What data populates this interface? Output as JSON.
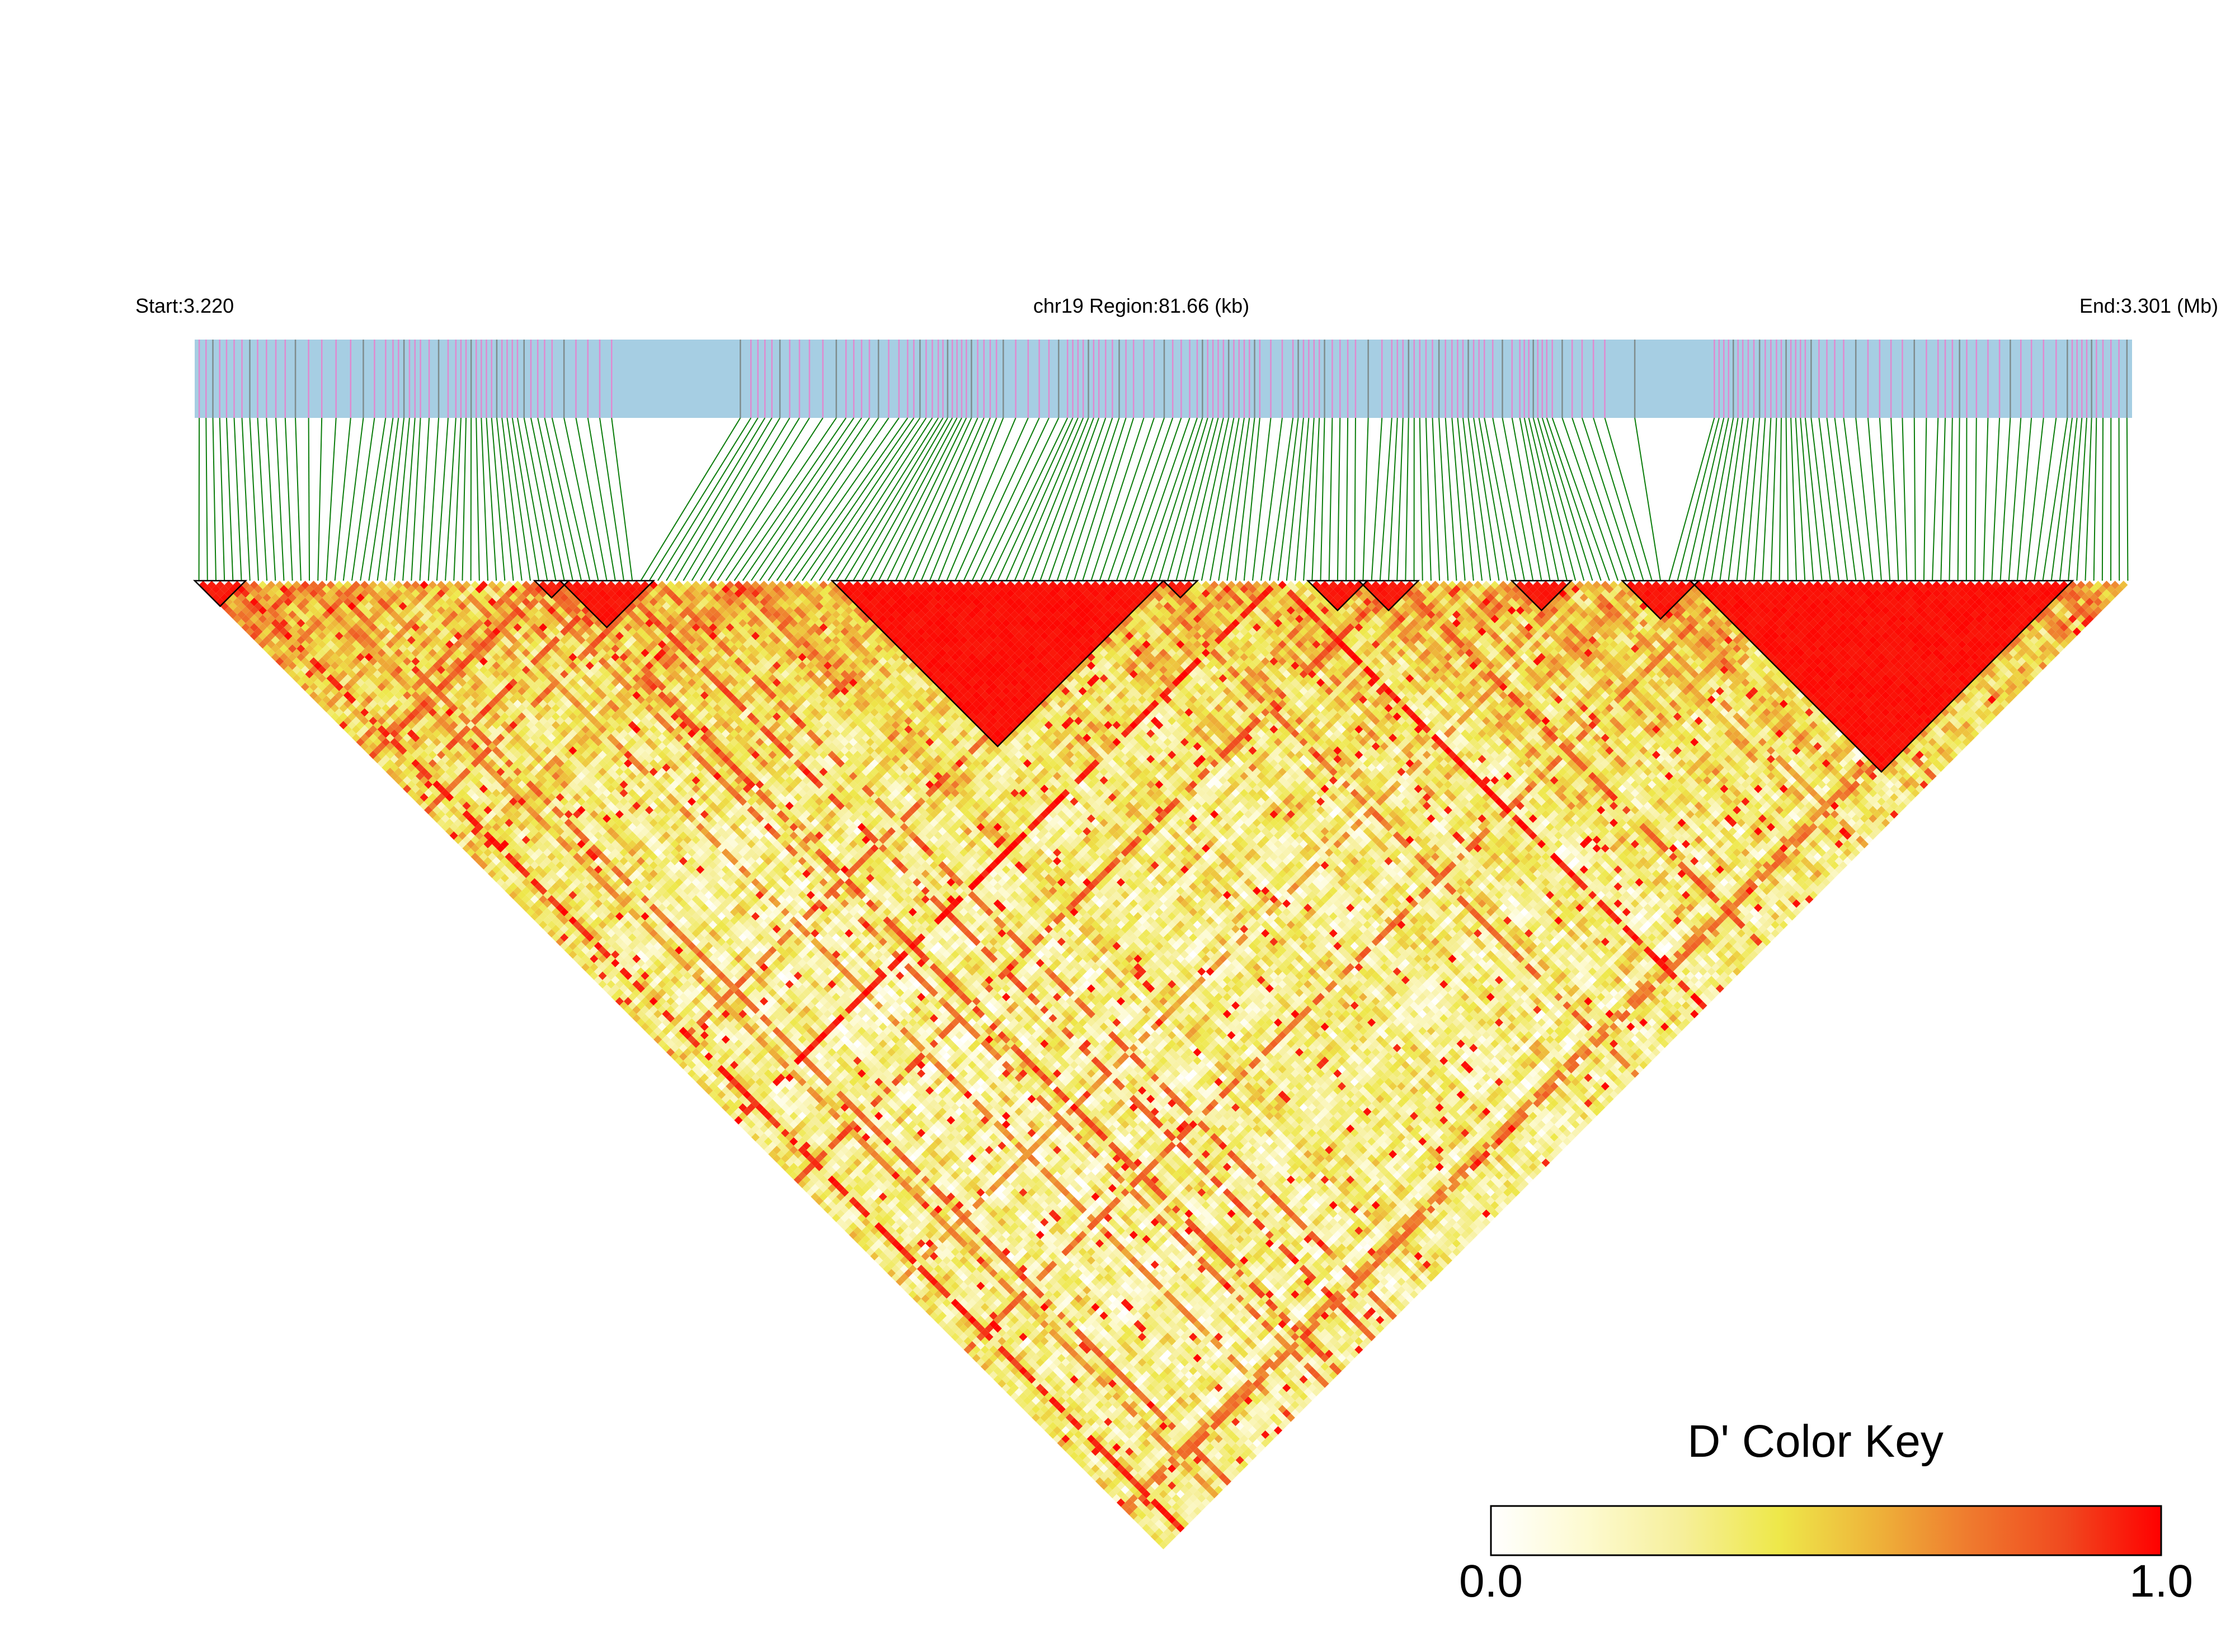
{
  "header": {
    "start_label": "Start:3.220",
    "region_label": "chr19 Region:81.66 (kb)",
    "end_label": "End:3.301 (Mb)"
  },
  "color_key": {
    "title": "D' Color Key",
    "min_label": "0.0",
    "max_label": "1.0",
    "gradient": [
      "#ffffff",
      "#fdfad0",
      "#f6ef9a",
      "#eee84a",
      "#eeb43a",
      "#ef7a2e",
      "#f0491f",
      "#ff0000"
    ]
  },
  "colors": {
    "track_background": "#a6cee3",
    "snp_mark_primary": "#e08ad0",
    "snp_mark_secondary": "#7f8c8d",
    "connector_line": "#0b7d0b",
    "ld_high": "#ff0000",
    "block_outline": "#000000"
  },
  "chart_data": {
    "type": "heatmap",
    "description_metric": "D'",
    "chromosome": "chr19",
    "region_start_mb": 3.22,
    "region_end_mb": 3.301,
    "region_length_kb": 81.66,
    "value_range": [
      0,
      1
    ],
    "snp_count": 228,
    "snp_positions_mb": [],
    "ld_blocks": [
      {
        "first_snp": 0,
        "last_snp": 5,
        "d_prime": 0.97
      },
      {
        "first_snp": 40,
        "last_snp": 43,
        "d_prime": 0.97
      },
      {
        "first_snp": 43,
        "last_snp": 53,
        "d_prime": 0.98
      },
      {
        "first_snp": 75,
        "last_snp": 113,
        "d_prime": 0.99
      },
      {
        "first_snp": 114,
        "last_snp": 117,
        "d_prime": 0.97
      },
      {
        "first_snp": 131,
        "last_snp": 137,
        "d_prime": 0.98
      },
      {
        "first_snp": 137,
        "last_snp": 143,
        "d_prime": 0.98
      },
      {
        "first_snp": 155,
        "last_snp": 161,
        "d_prime": 0.97
      },
      {
        "first_snp": 168,
        "last_snp": 176,
        "d_prime": 0.98
      },
      {
        "first_snp": 176,
        "last_snp": 220,
        "d_prime": 0.99
      }
    ],
    "pattern": {
      "background_mean": 0.28,
      "near_diagonal_boost": 0.35,
      "strong_snp_fraction": 0.08
    }
  }
}
